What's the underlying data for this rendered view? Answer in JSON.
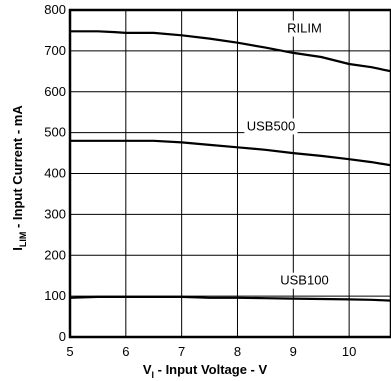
{
  "chart_data": {
    "type": "line",
    "xlabel_main": "V",
    "xlabel_sub": "I",
    "xlabel_rest": " - Input Voltage - V",
    "ylabel_main": "I",
    "ylabel_sub": "LIM",
    "ylabel_rest": " - Input Current - mA",
    "xlim": [
      5,
      10.75
    ],
    "ylim": [
      0,
      800
    ],
    "x_ticks": [
      5,
      6,
      7,
      8,
      9,
      10
    ],
    "y_ticks": [
      0,
      100,
      200,
      300,
      400,
      500,
      600,
      700,
      800
    ],
    "grid": true,
    "series": [
      {
        "name": "RILIM",
        "x": [
          5.0,
          5.5,
          5.8,
          6.0,
          6.5,
          7.0,
          7.5,
          8.0,
          8.5,
          9.0,
          9.5,
          10.0,
          10.4,
          10.75
        ],
        "y": [
          748,
          748,
          746,
          744,
          744,
          738,
          730,
          720,
          708,
          695,
          685,
          668,
          660,
          650
        ]
      },
      {
        "name": "USB500",
        "x": [
          5.0,
          5.5,
          6.0,
          6.5,
          7.0,
          7.5,
          8.0,
          8.5,
          9.0,
          9.5,
          10.0,
          10.4,
          10.75
        ],
        "y": [
          480,
          480,
          480,
          480,
          476,
          470,
          464,
          458,
          450,
          443,
          435,
          428,
          420
        ]
      },
      {
        "name": "USB100",
        "x": [
          5.0,
          5.5,
          6.0,
          6.5,
          7.0,
          7.5,
          8.0,
          8.5,
          9.0,
          9.5,
          10.0,
          10.4,
          10.75
        ],
        "y": [
          96,
          98,
          98,
          98,
          98,
          96,
          96,
          95,
          94,
          93,
          92,
          91,
          89
        ]
      }
    ]
  }
}
